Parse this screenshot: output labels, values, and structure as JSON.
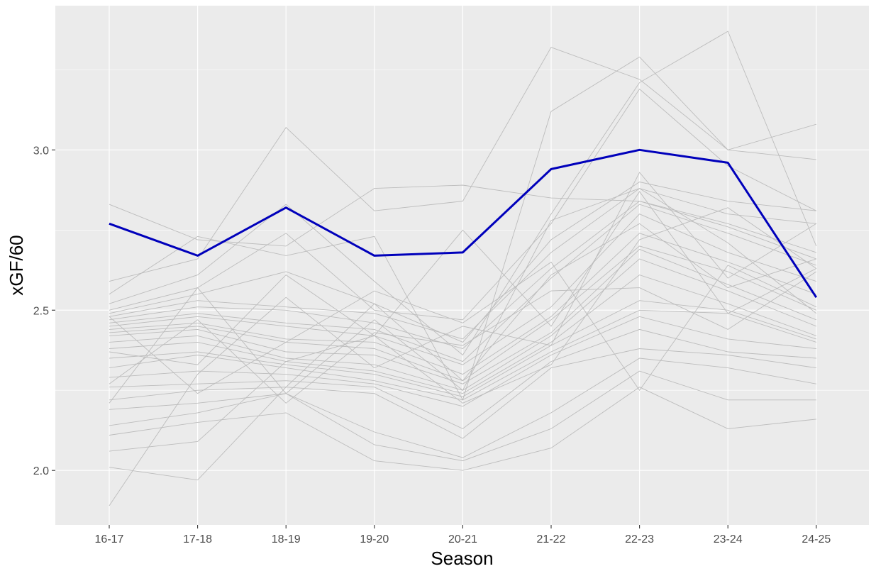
{
  "chart_data": {
    "type": "line",
    "title": "",
    "xlabel": "Season",
    "ylabel": "xGF/60",
    "categories": [
      "16-17",
      "17-18",
      "18-19",
      "19-20",
      "20-21",
      "21-22",
      "22-23",
      "23-24",
      "24-25"
    ],
    "ylim": [
      1.83,
      3.45
    ],
    "yticks": [
      "2.0",
      "2.5",
      "3.0"
    ],
    "grid": true,
    "legend": "none",
    "colors": {
      "panel": "#ebebeb",
      "grid": "#ffffff",
      "context_line": "#bcbcbc",
      "highlight": "#0000bb"
    },
    "highlight_series": {
      "values": [
        2.77,
        2.67,
        2.82,
        2.67,
        2.68,
        2.94,
        3.0,
        2.96,
        2.54
      ]
    },
    "context_series": [
      {
        "values": [
          2.83,
          2.72,
          2.7,
          2.88,
          2.89,
          2.85,
          2.84,
          2.77,
          2.68
        ]
      },
      {
        "values": [
          2.59,
          2.66,
          3.07,
          2.81,
          2.84,
          3.32,
          3.22,
          3.0,
          3.08
        ]
      },
      {
        "values": [
          2.55,
          2.73,
          2.67,
          2.73,
          2.22,
          3.12,
          3.29,
          3.0,
          2.97
        ]
      },
      {
        "values": [
          2.52,
          2.61,
          2.83,
          2.59,
          2.36,
          2.8,
          3.21,
          3.37,
          2.7
        ]
      },
      {
        "values": [
          2.5,
          2.57,
          2.74,
          2.5,
          2.47,
          2.77,
          3.19,
          2.95,
          2.81
        ]
      },
      {
        "values": [
          2.49,
          2.55,
          2.62,
          2.52,
          2.4,
          2.72,
          2.9,
          2.84,
          2.81
        ]
      },
      {
        "values": [
          2.48,
          2.53,
          2.51,
          2.49,
          2.41,
          2.68,
          2.88,
          2.8,
          2.77
        ]
      },
      {
        "values": [
          2.47,
          2.51,
          2.5,
          2.46,
          2.38,
          2.63,
          2.84,
          2.76,
          2.66
        ]
      },
      {
        "values": [
          2.46,
          2.49,
          2.46,
          2.44,
          2.34,
          2.6,
          2.83,
          2.74,
          2.64
        ]
      },
      {
        "values": [
          2.45,
          2.48,
          2.45,
          2.42,
          2.33,
          2.51,
          2.8,
          2.68,
          2.59
        ]
      },
      {
        "values": [
          2.44,
          2.46,
          2.41,
          2.4,
          2.3,
          2.48,
          2.74,
          2.65,
          2.55
        ]
      },
      {
        "values": [
          2.43,
          2.45,
          2.4,
          2.38,
          2.28,
          2.47,
          2.7,
          2.62,
          2.5
        ]
      },
      {
        "values": [
          2.42,
          2.44,
          2.37,
          2.36,
          2.27,
          2.43,
          2.69,
          2.58,
          2.47
        ]
      },
      {
        "values": [
          2.4,
          2.42,
          2.35,
          2.33,
          2.25,
          2.42,
          2.66,
          2.56,
          2.45
        ]
      },
      {
        "values": [
          2.38,
          2.4,
          2.34,
          2.31,
          2.24,
          2.4,
          2.61,
          2.52,
          2.42
        ]
      },
      {
        "values": [
          2.35,
          2.37,
          2.33,
          2.3,
          2.23,
          2.39,
          2.53,
          2.5,
          2.41
        ]
      },
      {
        "values": [
          2.32,
          2.36,
          2.32,
          2.28,
          2.22,
          2.37,
          2.5,
          2.49,
          2.4
        ]
      },
      {
        "values": [
          2.29,
          2.31,
          2.3,
          2.27,
          2.2,
          2.36,
          2.48,
          2.41,
          2.38
        ]
      },
      {
        "values": [
          2.26,
          2.27,
          2.28,
          2.26,
          2.13,
          2.34,
          2.44,
          2.37,
          2.35
        ]
      },
      {
        "values": [
          2.22,
          2.25,
          2.26,
          2.24,
          2.1,
          2.32,
          2.38,
          2.36,
          2.32
        ]
      },
      {
        "values": [
          2.19,
          2.21,
          2.24,
          2.12,
          2.04,
          2.18,
          2.35,
          2.32,
          2.27
        ]
      },
      {
        "values": [
          2.14,
          2.18,
          2.24,
          2.08,
          2.03,
          2.13,
          2.31,
          2.22,
          2.22
        ]
      },
      {
        "values": [
          2.11,
          2.15,
          2.18,
          2.03,
          2.0,
          2.07,
          2.26,
          2.13,
          2.16
        ]
      },
      {
        "values": [
          2.06,
          2.09,
          2.34,
          2.42,
          2.75,
          2.45,
          2.87,
          2.49,
          2.63
        ]
      },
      {
        "values": [
          2.01,
          1.97,
          2.26,
          2.52,
          2.28,
          2.61,
          2.77,
          2.57,
          2.66
        ]
      },
      {
        "values": [
          1.89,
          2.3,
          2.54,
          2.32,
          2.45,
          2.39,
          2.93,
          2.6,
          2.77
        ]
      },
      {
        "values": [
          2.21,
          2.57,
          2.24,
          2.47,
          2.25,
          2.78,
          2.88,
          2.71,
          2.49
        ]
      },
      {
        "values": [
          2.37,
          2.33,
          2.61,
          2.42,
          2.21,
          2.33,
          2.72,
          2.82,
          2.63
        ]
      },
      {
        "values": [
          2.48,
          2.24,
          2.4,
          2.56,
          2.46,
          2.65,
          2.25,
          2.64,
          2.51
        ]
      },
      {
        "values": [
          2.27,
          2.47,
          2.21,
          2.43,
          2.39,
          2.56,
          2.57,
          2.44,
          2.62
        ]
      }
    ]
  }
}
